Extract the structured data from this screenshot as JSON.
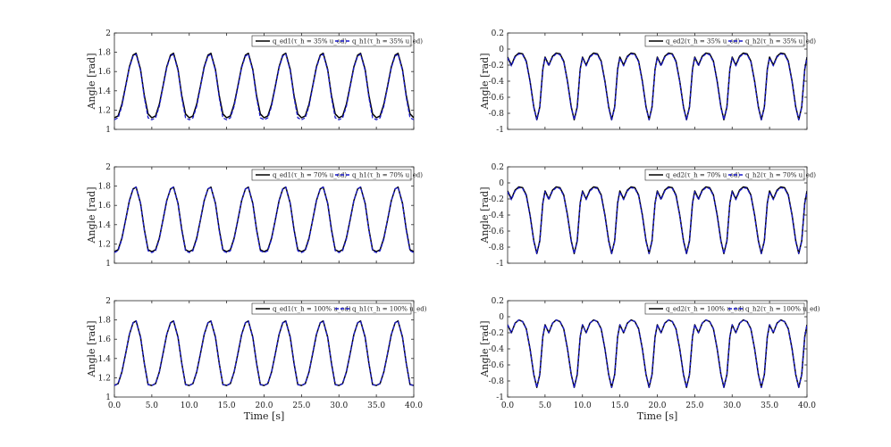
{
  "chart_data": [
    {
      "type": "line",
      "panel": "q1-35",
      "ylabel": "Angle [rad]",
      "xlabel": "",
      "xlim": [
        0,
        40
      ],
      "ylim": [
        1,
        2
      ],
      "yticks": [
        "1",
        "1.2",
        "1.4",
        "1.6",
        "1.8",
        "2"
      ],
      "xticks": [],
      "legend_position": "top-right",
      "legend": [
        {
          "label": "q_ed1(τ_h = 35% u_ed)",
          "color": "#000000",
          "dash": "solid"
        },
        {
          "label": "q_h1(τ_h = 35% u_ed)",
          "color": "#1a1acc",
          "dash": "dashed"
        }
      ],
      "series": [
        {
          "name": "q_ed1(τ_h = 35% u_ed)",
          "color": "#000000",
          "x": [
            0.0,
            0.5,
            1.0,
            1.5,
            2.0,
            2.5,
            2.9,
            3.5,
            4.0,
            4.5,
            5.0
          ],
          "y": [
            1.12,
            1.14,
            1.26,
            1.45,
            1.65,
            1.77,
            1.79,
            1.62,
            1.35,
            1.16,
            1.12
          ]
        },
        {
          "name": "q_h1(τ_h = 35% u_ed)",
          "color": "#1a1acc",
          "x": [
            0.0,
            0.5,
            1.0,
            1.5,
            2.0,
            2.5,
            2.9,
            3.5,
            4.0,
            4.5,
            5.0
          ],
          "y": [
            1.1,
            1.12,
            1.24,
            1.44,
            1.64,
            1.76,
            1.78,
            1.61,
            1.33,
            1.12,
            1.1
          ]
        }
      ]
    },
    {
      "type": "line",
      "panel": "q2-35",
      "ylabel": "Angle [rad]",
      "xlabel": "",
      "xlim": [
        0,
        40
      ],
      "ylim": [
        -1,
        0.2
      ],
      "yticks": [
        "-1",
        "-0.8",
        "-0.6",
        "-0.4",
        "-0.2",
        "0",
        "0.2"
      ],
      "xticks": [],
      "legend_position": "top-right",
      "legend": [
        {
          "label": "q_ed2(τ_h = 35% u_ed)",
          "color": "#000000",
          "dash": "solid"
        },
        {
          "label": "q_h2(τ_h = 35% u_ed)",
          "color": "#1a1acc",
          "dash": "dashed"
        }
      ],
      "series": [
        {
          "name": "q_ed2(τ_h = 35% u_ed)",
          "color": "#000000",
          "x": [
            0.0,
            0.5,
            1.0,
            1.5,
            2.0,
            2.5,
            3.0,
            3.5,
            3.9,
            4.3,
            4.7,
            5.0
          ],
          "y": [
            -0.1,
            -0.2,
            -0.09,
            -0.05,
            -0.06,
            -0.15,
            -0.4,
            -0.72,
            -0.88,
            -0.72,
            -0.25,
            -0.1
          ]
        },
        {
          "name": "q_h2(τ_h = 35% u_ed)",
          "color": "#1a1acc",
          "x": [
            0.0,
            0.5,
            1.0,
            1.5,
            2.0,
            2.5,
            3.0,
            3.5,
            3.9,
            4.3,
            4.7,
            5.0
          ],
          "y": [
            -0.11,
            -0.21,
            -0.1,
            -0.06,
            -0.07,
            -0.16,
            -0.41,
            -0.73,
            -0.88,
            -0.73,
            -0.26,
            -0.11
          ]
        }
      ]
    },
    {
      "type": "line",
      "panel": "q1-70",
      "ylabel": "Angle [rad]",
      "xlabel": "",
      "xlim": [
        0,
        40
      ],
      "ylim": [
        1,
        2
      ],
      "yticks": [
        "1",
        "1.2",
        "1.4",
        "1.6",
        "1.8",
        "2"
      ],
      "xticks": [],
      "legend_position": "top-right",
      "legend": [
        {
          "label": "q_ed1(τ_h = 70% u_ed)",
          "color": "#000000",
          "dash": "solid"
        },
        {
          "label": "q_h1(τ_h = 70% u_ed)",
          "color": "#1a1acc",
          "dash": "dashed"
        }
      ],
      "series": [
        {
          "name": "q_ed1(τ_h = 70% u_ed)",
          "color": "#000000",
          "x": [
            0.0,
            0.5,
            1.0,
            1.5,
            2.0,
            2.5,
            2.9,
            3.5,
            4.0,
            4.5,
            5.0
          ],
          "y": [
            1.12,
            1.14,
            1.26,
            1.45,
            1.65,
            1.77,
            1.79,
            1.62,
            1.35,
            1.14,
            1.12
          ]
        },
        {
          "name": "q_h1(τ_h = 70% u_ed)",
          "color": "#1a1acc",
          "x": [
            0.0,
            0.5,
            1.0,
            1.5,
            2.0,
            2.5,
            2.9,
            3.5,
            4.0,
            4.5,
            5.0
          ],
          "y": [
            1.11,
            1.13,
            1.25,
            1.45,
            1.65,
            1.77,
            1.79,
            1.62,
            1.34,
            1.13,
            1.11
          ]
        }
      ]
    },
    {
      "type": "line",
      "panel": "q2-70",
      "ylabel": "Angle [rad]",
      "xlabel": "",
      "xlim": [
        0,
        40
      ],
      "ylim": [
        -1,
        0.2
      ],
      "yticks": [
        "-1",
        "-0.8",
        "-0.6",
        "-0.4",
        "-0.2",
        "0",
        "0.2"
      ],
      "xticks": [],
      "legend_position": "top-right",
      "legend": [
        {
          "label": "q_ed2(τ_h = 70% u_ed)",
          "color": "#000000",
          "dash": "solid"
        },
        {
          "label": "q_h2(τ_h = 70% u_ed)",
          "color": "#1a1acc",
          "dash": "dashed"
        }
      ],
      "series": [
        {
          "name": "q_ed2(τ_h = 70% u_ed)",
          "color": "#000000",
          "x": [
            0.0,
            0.5,
            1.0,
            1.5,
            2.0,
            2.5,
            3.0,
            3.5,
            3.9,
            4.3,
            4.7,
            5.0
          ],
          "y": [
            -0.1,
            -0.2,
            -0.09,
            -0.05,
            -0.06,
            -0.15,
            -0.4,
            -0.72,
            -0.88,
            -0.72,
            -0.25,
            -0.1
          ]
        },
        {
          "name": "q_h2(τ_h = 70% u_ed)",
          "color": "#1a1acc",
          "x": [
            0.0,
            0.5,
            1.0,
            1.5,
            2.0,
            2.5,
            3.0,
            3.5,
            3.9,
            4.3,
            4.7,
            5.0
          ],
          "y": [
            -0.11,
            -0.21,
            -0.1,
            -0.06,
            -0.07,
            -0.16,
            -0.41,
            -0.73,
            -0.88,
            -0.73,
            -0.26,
            -0.11
          ]
        }
      ]
    },
    {
      "type": "line",
      "panel": "q1-100",
      "ylabel": "Angle [rad]",
      "xlabel": "Time [s]",
      "xlim": [
        0,
        40
      ],
      "ylim": [
        1,
        2
      ],
      "yticks": [
        "1",
        "1.2",
        "1.4",
        "1.6",
        "1.8",
        "2"
      ],
      "xticks": [
        "0.0",
        "5.0",
        "10.0",
        "15.0",
        "20.0",
        "25.0",
        "30.0",
        "35.0",
        "40.0"
      ],
      "legend_position": "top-right",
      "legend": [
        {
          "label": "q_ed1(τ_h = 100% u_ed)",
          "color": "#000000",
          "dash": "solid"
        },
        {
          "label": "q_h1(τ_h = 100% u_ed)",
          "color": "#1a1acc",
          "dash": "dashed"
        }
      ],
      "series": [
        {
          "name": "q_ed1(τ_h = 100% u_ed)",
          "color": "#000000",
          "x": [
            0.0,
            0.5,
            1.0,
            1.5,
            2.0,
            2.5,
            2.9,
            3.5,
            4.0,
            4.5,
            5.0
          ],
          "y": [
            1.12,
            1.14,
            1.26,
            1.45,
            1.65,
            1.77,
            1.79,
            1.62,
            1.35,
            1.13,
            1.12
          ]
        },
        {
          "name": "q_h1(τ_h = 100% u_ed)",
          "color": "#1a1acc",
          "x": [
            0.0,
            0.5,
            1.0,
            1.5,
            2.0,
            2.5,
            2.9,
            3.5,
            4.0,
            4.5,
            5.0
          ],
          "y": [
            1.12,
            1.14,
            1.26,
            1.45,
            1.65,
            1.77,
            1.79,
            1.62,
            1.35,
            1.13,
            1.12
          ]
        }
      ]
    },
    {
      "type": "line",
      "panel": "q2-100",
      "ylabel": "Angle [rad]",
      "xlabel": "Time [s]",
      "xlim": [
        0,
        40
      ],
      "ylim": [
        -1,
        0.2
      ],
      "yticks": [
        "-1",
        "-0.8",
        "-0.6",
        "-0.4",
        "-0.2",
        "0",
        "0.2"
      ],
      "xticks": [
        "0.0",
        "5.0",
        "10.0",
        "15.0",
        "20.0",
        "25.0",
        "30.0",
        "35.0",
        "40.0"
      ],
      "legend_position": "top-right",
      "legend": [
        {
          "label": "q_ed2(τ_h = 100% u_ed)",
          "color": "#000000",
          "dash": "solid"
        },
        {
          "label": "q_h2(τ_h = 100% u_ed)",
          "color": "#1a1acc",
          "dash": "dashed"
        }
      ],
      "series": [
        {
          "name": "q_ed2(τ_h = 100% u_ed)",
          "color": "#000000",
          "x": [
            0.0,
            0.5,
            1.0,
            1.5,
            2.0,
            2.5,
            3.0,
            3.5,
            3.9,
            4.3,
            4.7,
            5.0
          ],
          "y": [
            -0.1,
            -0.2,
            -0.08,
            -0.04,
            -0.06,
            -0.15,
            -0.4,
            -0.72,
            -0.88,
            -0.72,
            -0.25,
            -0.1
          ]
        },
        {
          "name": "q_h2(τ_h = 100% u_ed)",
          "color": "#1a1acc",
          "x": [
            0.0,
            0.5,
            1.0,
            1.5,
            2.0,
            2.5,
            3.0,
            3.5,
            3.9,
            4.3,
            4.7,
            5.0
          ],
          "y": [
            -0.1,
            -0.2,
            -0.08,
            -0.04,
            -0.06,
            -0.15,
            -0.4,
            -0.72,
            -0.88,
            -0.72,
            -0.25,
            -0.1
          ]
        }
      ]
    }
  ],
  "period": 5
}
